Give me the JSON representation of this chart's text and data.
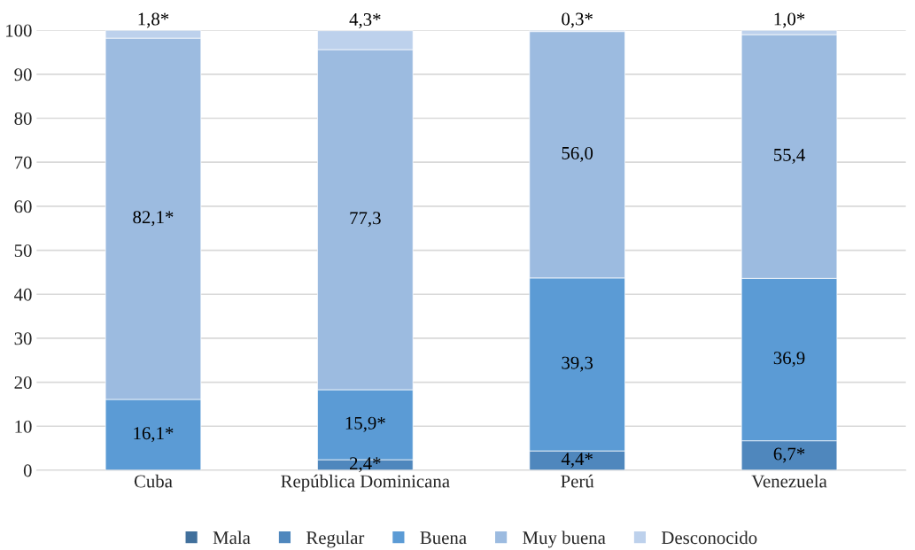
{
  "chart_data": {
    "type": "bar",
    "stacked": true,
    "categories": [
      "Cuba",
      "República Dominicana",
      "Perú",
      "Venezuela"
    ],
    "series": [
      {
        "name": "Mala",
        "color": "#41709c",
        "values": [
          0,
          0,
          0,
          0
        ],
        "value_labels": [
          null,
          null,
          null,
          null
        ]
      },
      {
        "name": "Regular",
        "color": "#4f87bd",
        "values": [
          0,
          2.4,
          4.4,
          6.7
        ],
        "value_labels": [
          null,
          "2,4*",
          "4,4*",
          "6,7*"
        ]
      },
      {
        "name": "Buena",
        "color": "#5b9bd5",
        "values": [
          16.1,
          15.9,
          39.3,
          36.9
        ],
        "value_labels": [
          "16,1*",
          "15,9*",
          "39,3",
          "36,9"
        ]
      },
      {
        "name": "Muy buena",
        "color": "#9cbbe0",
        "values": [
          82.1,
          77.3,
          56.0,
          55.4
        ],
        "value_labels": [
          "82,1*",
          "77,3",
          "56,0",
          "55,4"
        ]
      },
      {
        "name": "Desconocido",
        "color": "#bdd1ec",
        "values": [
          1.8,
          4.3,
          0.3,
          1.0
        ],
        "value_labels": [
          "1,8*",
          "4,3*",
          "0,3*",
          "1,0*"
        ]
      }
    ],
    "ylim": [
      0,
      100
    ],
    "yticks": [
      0,
      10,
      20,
      30,
      40,
      50,
      60,
      70,
      80,
      90,
      100
    ],
    "grid": "y",
    "legend": "bottom"
  }
}
